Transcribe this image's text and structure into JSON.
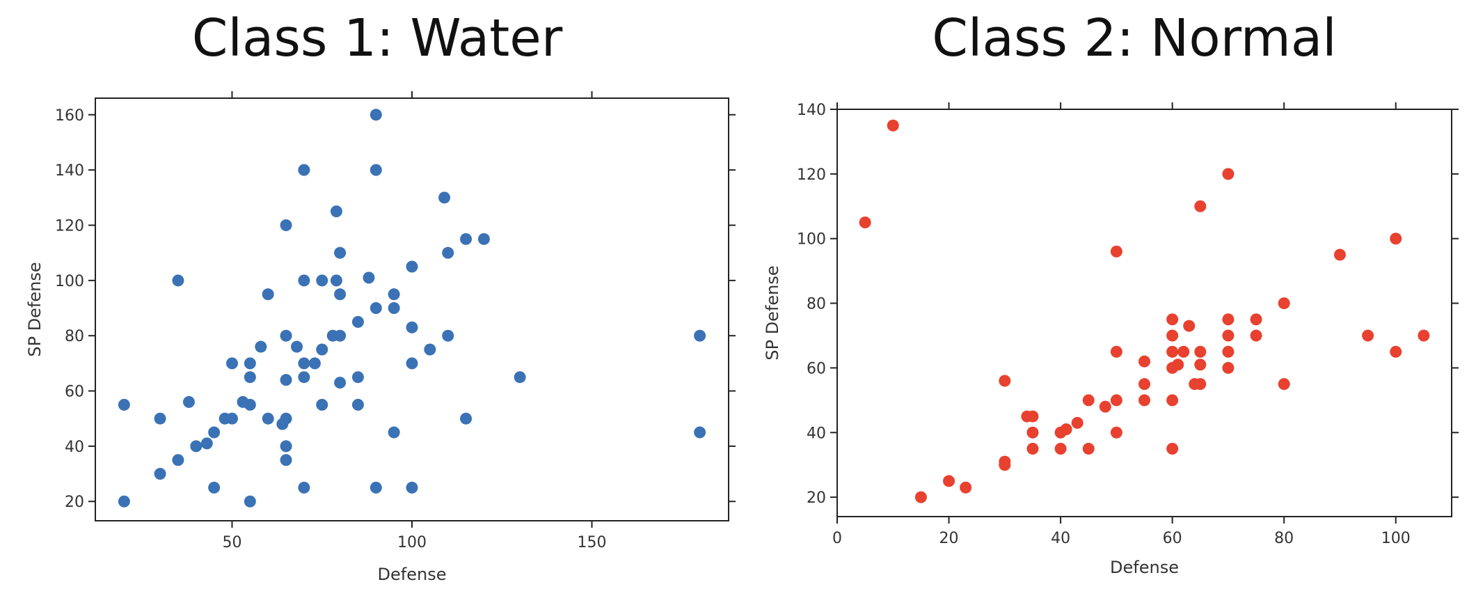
{
  "chart_data": [
    {
      "type": "scatter",
      "title": "Class 1: Water",
      "xlabel": "Defense",
      "ylabel": "SP Defense",
      "xlim": [
        12,
        188
      ],
      "ylim": [
        13,
        166
      ],
      "xticks": [
        50,
        100,
        150
      ],
      "yticks": [
        20,
        40,
        60,
        80,
        100,
        120,
        140,
        160
      ],
      "grid": false,
      "color": "#3a72b5",
      "series": [
        {
          "points": [
            [
              20,
              20
            ],
            [
              20,
              55
            ],
            [
              30,
              30
            ],
            [
              30,
              50
            ],
            [
              35,
              35
            ],
            [
              35,
              100
            ],
            [
              38,
              56
            ],
            [
              40,
              40
            ],
            [
              43,
              41
            ],
            [
              45,
              25
            ],
            [
              45,
              45
            ],
            [
              48,
              50
            ],
            [
              50,
              50
            ],
            [
              50,
              70
            ],
            [
              53,
              56
            ],
            [
              55,
              20
            ],
            [
              55,
              55
            ],
            [
              55,
              65
            ],
            [
              55,
              70
            ],
            [
              58,
              76
            ],
            [
              60,
              50
            ],
            [
              60,
              95
            ],
            [
              64,
              48
            ],
            [
              65,
              35
            ],
            [
              65,
              40
            ],
            [
              65,
              50
            ],
            [
              65,
              64
            ],
            [
              65,
              80
            ],
            [
              65,
              120
            ],
            [
              68,
              76
            ],
            [
              70,
              25
            ],
            [
              70,
              65
            ],
            [
              70,
              70
            ],
            [
              70,
              100
            ],
            [
              70,
              140
            ],
            [
              73,
              70
            ],
            [
              75,
              55
            ],
            [
              75,
              75
            ],
            [
              75,
              100
            ],
            [
              78,
              80
            ],
            [
              79,
              100
            ],
            [
              79,
              125
            ],
            [
              80,
              63
            ],
            [
              80,
              80
            ],
            [
              80,
              95
            ],
            [
              80,
              110
            ],
            [
              85,
              55
            ],
            [
              85,
              65
            ],
            [
              85,
              85
            ],
            [
              88,
              101
            ],
            [
              90,
              25
            ],
            [
              90,
              90
            ],
            [
              90,
              140
            ],
            [
              90,
              160
            ],
            [
              95,
              45
            ],
            [
              95,
              90
            ],
            [
              95,
              95
            ],
            [
              100,
              25
            ],
            [
              100,
              70
            ],
            [
              100,
              83
            ],
            [
              100,
              105
            ],
            [
              105,
              75
            ],
            [
              109,
              130
            ],
            [
              110,
              80
            ],
            [
              110,
              110
            ],
            [
              115,
              50
            ],
            [
              115,
              115
            ],
            [
              120,
              115
            ],
            [
              130,
              65
            ],
            [
              180,
              45
            ],
            [
              180,
              80
            ]
          ]
        }
      ]
    },
    {
      "type": "scatter",
      "title": "Class 2: Normal",
      "xlabel": "Defense",
      "ylabel": "SP Defense",
      "xlim": [
        0,
        110
      ],
      "ylim": [
        14,
        140
      ],
      "xticks": [
        0,
        20,
        40,
        60,
        80,
        100
      ],
      "yticks": [
        20,
        40,
        60,
        80,
        100,
        120,
        140
      ],
      "grid": false,
      "color": "#e8412f",
      "series": [
        {
          "points": [
            [
              5,
              105
            ],
            [
              10,
              135
            ],
            [
              15,
              20
            ],
            [
              20,
              25
            ],
            [
              23,
              23
            ],
            [
              30,
              30
            ],
            [
              30,
              31
            ],
            [
              30,
              56
            ],
            [
              34,
              45
            ],
            [
              35,
              35
            ],
            [
              35,
              40
            ],
            [
              35,
              45
            ],
            [
              40,
              35
            ],
            [
              40,
              40
            ],
            [
              41,
              41
            ],
            [
              43,
              43
            ],
            [
              45,
              35
            ],
            [
              45,
              50
            ],
            [
              48,
              48
            ],
            [
              50,
              40
            ],
            [
              50,
              50
            ],
            [
              50,
              65
            ],
            [
              50,
              96
            ],
            [
              55,
              50
            ],
            [
              55,
              55
            ],
            [
              55,
              62
            ],
            [
              60,
              35
            ],
            [
              60,
              50
            ],
            [
              60,
              60
            ],
            [
              60,
              65
            ],
            [
              60,
              70
            ],
            [
              60,
              75
            ],
            [
              61,
              61
            ],
            [
              62,
              65
            ],
            [
              63,
              73
            ],
            [
              64,
              55
            ],
            [
              65,
              55
            ],
            [
              65,
              61
            ],
            [
              65,
              65
            ],
            [
              65,
              110
            ],
            [
              70,
              60
            ],
            [
              70,
              65
            ],
            [
              70,
              70
            ],
            [
              70,
              75
            ],
            [
              70,
              120
            ],
            [
              75,
              70
            ],
            [
              75,
              75
            ],
            [
              80,
              55
            ],
            [
              80,
              80
            ],
            [
              90,
              95
            ],
            [
              95,
              70
            ],
            [
              100,
              65
            ],
            [
              100,
              100
            ],
            [
              105,
              70
            ]
          ]
        }
      ]
    }
  ]
}
